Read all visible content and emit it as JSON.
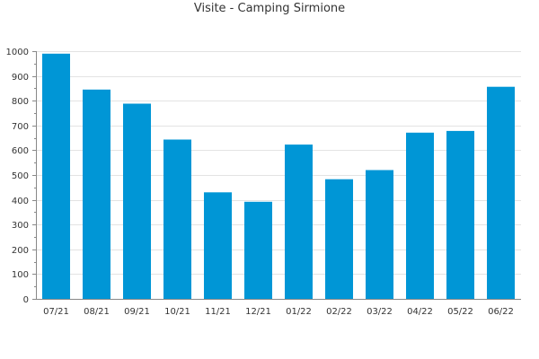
{
  "chart_data": {
    "type": "bar",
    "title": "Visite - Camping Sirmione",
    "xlabel": "",
    "ylabel": "",
    "categories": [
      "07/21",
      "08/21",
      "09/21",
      "10/21",
      "11/21",
      "12/21",
      "01/22",
      "02/22",
      "03/22",
      "04/22",
      "05/22",
      "06/22"
    ],
    "values": [
      990,
      845,
      788,
      643,
      430,
      392,
      623,
      483,
      520,
      671,
      678,
      856
    ],
    "ylim": [
      0,
      1000
    ],
    "yticks": [
      0,
      100,
      200,
      300,
      400,
      500,
      600,
      700,
      800,
      900,
      1000
    ],
    "grid": true,
    "legend": "none",
    "colors": {
      "bar": "#0096d6",
      "grid": "#e3e3e3",
      "axis": "#888888",
      "text": "#333333"
    }
  }
}
